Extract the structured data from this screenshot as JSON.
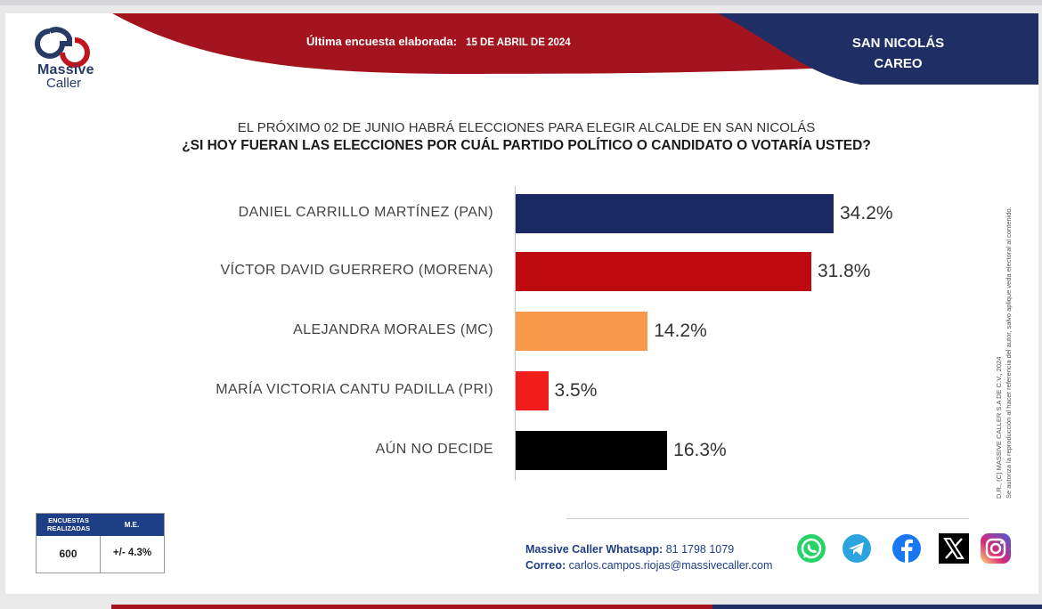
{
  "header": {
    "brand_line1": "Massive",
    "brand_line2": "Caller",
    "survey_label": "Última encuesta elaborada:",
    "survey_date": "15 DE ABRIL DE 2024",
    "region_line1": "SAN NICOLÁS",
    "region_line2": "CAREO"
  },
  "colors": {
    "banner_red": "#a3141e",
    "banner_blue": "#1f2f66",
    "pan": "#1b2a63",
    "morena": "#bf0a0f",
    "mc": "#f7984a",
    "pri": "#f11d1b",
    "undecided": "#000000",
    "stats_header": "#1e3f86"
  },
  "chart_data": {
    "type": "bar",
    "orientation": "horizontal",
    "title": "EL PRÓXIMO 02 DE JUNIO HABRÁ ELECCIONES PARA ELEGIR ALCALDE EN SAN NICOLÁS",
    "subtitle": "¿SI HOY FUERAN LAS ELECCIONES POR CUÁL PARTIDO POLÍTICO O CANDIDATO O VOTARÍA USTED?",
    "categories": [
      "DANIEL CARRILLO MARTÍNEZ (PAN)",
      "VÍCTOR DAVID GUERRERO (MORENA)",
      "ALEJANDRA MORALES (MC)",
      "MARÍA VICTORIA CANTU PADILLA (PRI)",
      "AÚN NO DECIDE"
    ],
    "values": [
      34.2,
      31.8,
      14.2,
      3.5,
      16.3
    ],
    "value_labels": [
      "34.2%",
      "31.8%",
      "14.2%",
      "3.5%",
      "16.3%"
    ],
    "colors": [
      "#1b2a63",
      "#bf0a0f",
      "#f7984a",
      "#f11d1b",
      "#000000"
    ],
    "xlim": [
      0,
      40
    ],
    "grid": false,
    "legend": "none"
  },
  "copyright": {
    "line1": "D.R., (C) MASSIVE CALLER S.A DE C.V., 2024",
    "line2": "Se autoriza la reproducción al hacer referencia del autor, salvo aplique veda electoral al contenido."
  },
  "stats": {
    "label_surveys": "ENCUESTAS REALIZADAS",
    "label_me": "M.E.",
    "surveys": "600",
    "margin": "+/- 4.3%"
  },
  "footer": {
    "whatsapp_label": "Massive Caller Whatsapp:",
    "whatsapp_number": "81 1798 1079",
    "email_label": "Correo:",
    "email": "carlos.campos.riojas@massivecaller.com"
  },
  "social_icons": [
    "whatsapp-icon",
    "telegram-icon",
    "facebook-icon",
    "x-icon",
    "instagram-icon"
  ]
}
